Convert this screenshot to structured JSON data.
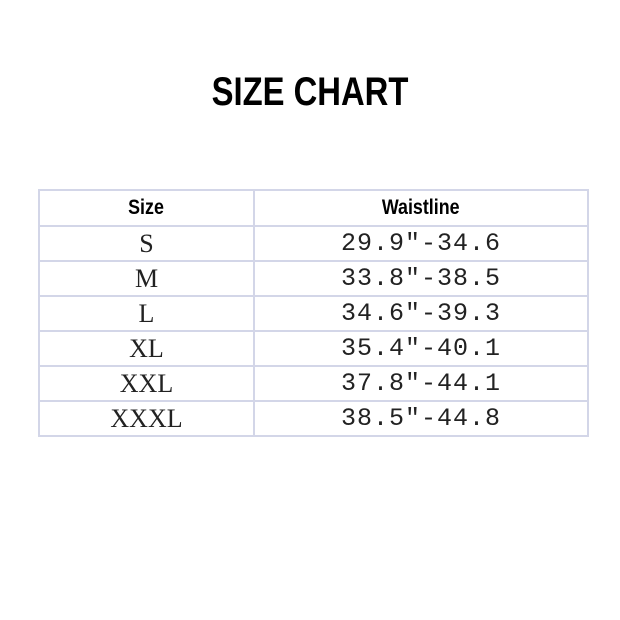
{
  "title": "SIZE CHART",
  "table": {
    "headers": [
      "Size",
      "Waistline"
    ],
    "rows": [
      {
        "size": "S",
        "waistline": "29.9″-34.6"
      },
      {
        "size": "M",
        "waistline": "33.8″-38.5"
      },
      {
        "size": "L",
        "waistline": "34.6″-39.3"
      },
      {
        "size": "XL",
        "waistline": "35.4″-40.1"
      },
      {
        "size": "XXL",
        "waistline": "37.8″-44.1"
      },
      {
        "size": "XXXL",
        "waistline": "38.5″-44.8"
      }
    ]
  }
}
